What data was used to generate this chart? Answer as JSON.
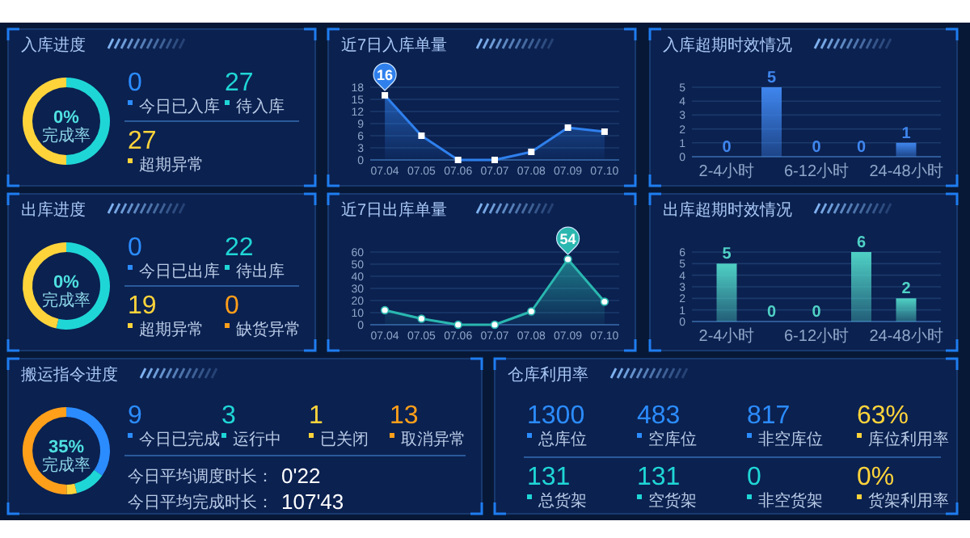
{
  "chart_data": [
    {
      "type": "donut",
      "title": "入库进度",
      "categories": [
        null,
        null,
        null
      ],
      "values": [
        0,
        50,
        50
      ],
      "colors": [
        "#2b8cff",
        "#1fd6d6",
        "#ffd43b"
      ],
      "annotations": [
        "0%",
        "完成率"
      ]
    },
    {
      "type": "other",
      "categories": [
        "今日已入库",
        "待入库",
        "超期异常"
      ],
      "value_labels": [
        "0",
        "27",
        "27"
      ],
      "colors": [
        "#2b8cff",
        "#1fd6d6",
        "#ffd43b"
      ]
    },
    {
      "type": "area",
      "title": "近7日入库单量",
      "categories": [
        "07.04",
        "07.05",
        "07.06",
        "07.07",
        "07.08",
        "07.09",
        "07.10"
      ],
      "series": [
        {
          "color": "#2f80ed",
          "values": [
            16,
            6,
            0,
            0,
            2,
            8,
            7
          ]
        }
      ],
      "ylim": [
        0,
        18
      ],
      "yticks": [
        0,
        3,
        6,
        9,
        12,
        15,
        18
      ],
      "grid": "y",
      "marker": "square",
      "annotations": [
        {
          "text": "16",
          "x": "07.04",
          "y": 16
        }
      ]
    },
    {
      "type": "bar",
      "title": "入库超期时效情况",
      "categories": [
        "2-4小时",
        null,
        "6-12小时",
        null,
        "24-48小时"
      ],
      "values": [
        0,
        5,
        0,
        0,
        1
      ],
      "color": "#3f86ee",
      "ylim": [
        0,
        5
      ],
      "yticks": [
        0,
        1,
        2,
        3,
        4,
        5
      ],
      "grid": "y",
      "data_labels": true
    },
    {
      "type": "donut",
      "title": "出库进度",
      "categories": [
        null,
        null,
        null,
        null
      ],
      "values": [
        0,
        53.7,
        46.3,
        0
      ],
      "colors": [
        "#2b8cff",
        "#1fd6d6",
        "#ffd43b",
        "#ff9f1a"
      ],
      "annotations": [
        "0%",
        "完成率"
      ]
    },
    {
      "type": "other",
      "categories": [
        "今日已出库",
        "待出库",
        "超期异常",
        "缺货异常"
      ],
      "value_labels": [
        "0",
        "22",
        "19",
        "0"
      ],
      "colors": [
        "#2b8cff",
        "#1fd6d6",
        "#ffd43b",
        "#ff9f1a"
      ]
    },
    {
      "type": "area",
      "title": "近7日出库单量",
      "categories": [
        "07.04",
        "07.05",
        "07.06",
        "07.07",
        "07.08",
        "07.09",
        "07.10"
      ],
      "series": [
        {
          "color": "#2ab7b0",
          "values": [
            12,
            5,
            0,
            0,
            11,
            54,
            19
          ]
        }
      ],
      "ylim": [
        0,
        60
      ],
      "yticks": [
        0,
        10,
        20,
        30,
        40,
        50,
        60
      ],
      "grid": "y",
      "marker": "circle",
      "annotations": [
        {
          "text": "54",
          "x": "07.09",
          "y": 54
        }
      ]
    },
    {
      "type": "bar",
      "title": "出库超期时效情况",
      "categories": [
        "2-4小时",
        null,
        "6-12小时",
        null,
        "24-48小时"
      ],
      "values": [
        5,
        0,
        0,
        6,
        2
      ],
      "color": "#4fd1c5",
      "ylim": [
        0,
        6
      ],
      "yticks": [
        0,
        1,
        2,
        3,
        4,
        5,
        6
      ],
      "grid": "y",
      "data_labels": true
    },
    {
      "type": "donut",
      "title": "搬运指令进度",
      "categories": [
        null,
        null,
        null,
        null
      ],
      "values": [
        34.6,
        11.5,
        3.8,
        50.1
      ],
      "colors": [
        "#2b8cff",
        "#1fd6d6",
        "#ffd43b",
        "#ff9f1a"
      ],
      "annotations": [
        "35%",
        "完成率"
      ]
    },
    {
      "type": "other",
      "categories": [
        "今日已完成",
        "运行中",
        "已关闭",
        "取消异常"
      ],
      "value_labels": [
        "9",
        "3",
        "1",
        "13"
      ],
      "colors": [
        "#2b8cff",
        "#1fd6d6",
        "#ffd43b",
        "#ff9f1a"
      ],
      "annotations": [
        "今日平均调度时长：",
        "0'22",
        "今日平均完成时长：",
        "107'43"
      ]
    },
    {
      "type": "other",
      "title": "仓库利用率",
      "categories": [
        "总库位",
        "空库位",
        "非空库位",
        "库位利用率",
        "总货架",
        "空货架",
        "非空货架",
        "货架利用率"
      ],
      "value_labels": [
        "1300",
        "483",
        "817",
        "63%",
        "131",
        "131",
        "0",
        "0%"
      ],
      "colors": [
        "#2b8cff",
        "#2b8cff",
        "#2b8cff",
        "#ffd43b",
        "#1fd6d6",
        "#1fd6d6",
        "#1fd6d6",
        "#ffd43b"
      ]
    }
  ]
}
